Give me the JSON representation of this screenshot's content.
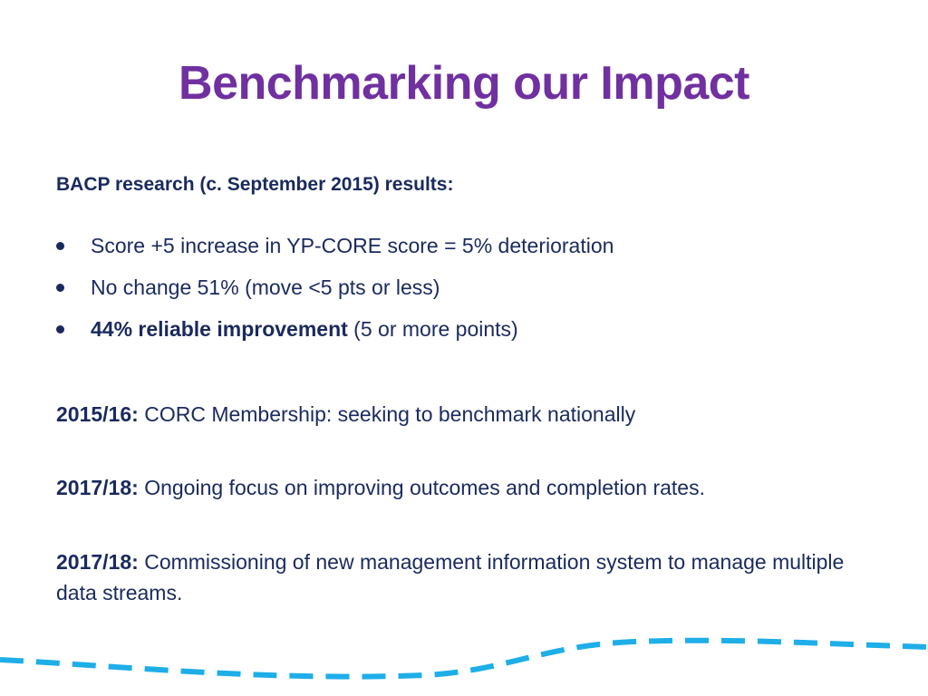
{
  "slide": {
    "title": "Benchmarking our Impact",
    "intro": "BACP research (c. September 2015) results:",
    "bullets": [
      {
        "bold": "",
        "text": "Score +5 increase in YP-CORE score = 5% deterioration"
      },
      {
        "bold": "",
        "text": "No change 51% (move <5 pts or less)"
      },
      {
        "bold": "44% reliable improvement",
        "text": " (5 or more points)"
      }
    ],
    "paragraphs": [
      {
        "label": "2015/16:",
        "text": " CORC Membership: seeking to benchmark nationally"
      },
      {
        "label": "2017/18:",
        "text": " Ongoing focus on improving outcomes and completion rates."
      },
      {
        "label": "2017/18:",
        "text": " Commissioning of new management information system to manage multiple data streams."
      }
    ]
  },
  "colors": {
    "title": "#7030a0",
    "body": "#1a2a5e",
    "wave": "#1eaee8"
  }
}
